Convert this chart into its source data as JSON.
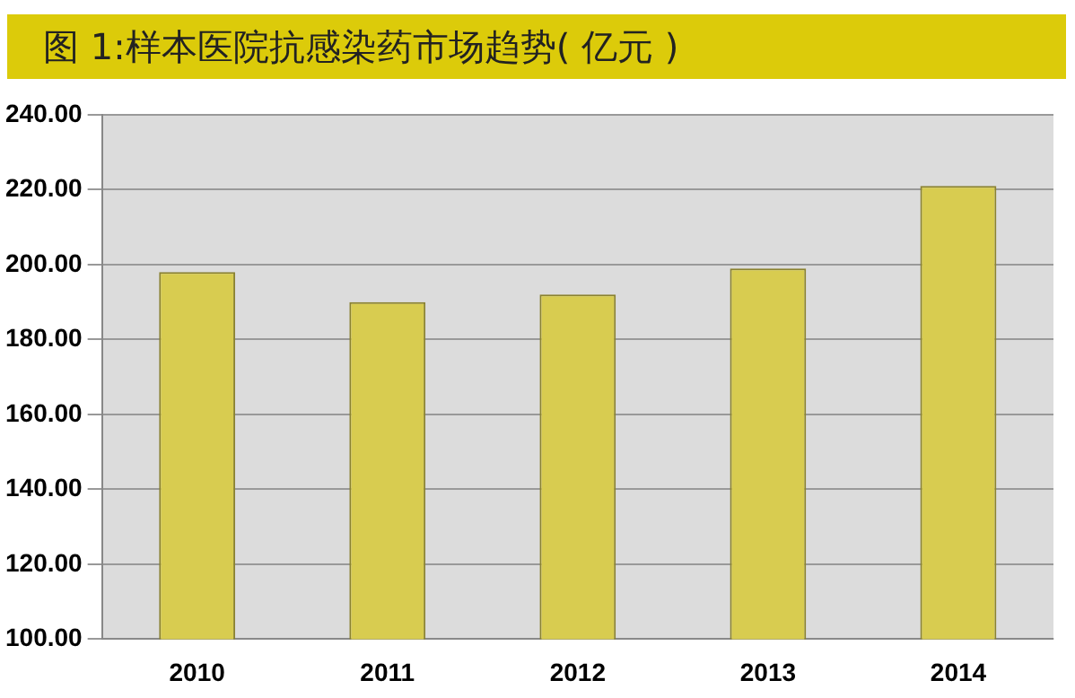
{
  "chart_data": {
    "type": "bar",
    "title": "图 1:样本医院抗感染药市场趋势( 亿元 )",
    "categories": [
      "2010",
      "2011",
      "2012",
      "2013",
      "2014"
    ],
    "values": [
      198,
      190,
      192,
      199,
      221
    ],
    "color": "#d8cc50",
    "ylim": [
      100,
      240
    ],
    "yticks": [
      {
        "value": 100,
        "label": "100.00"
      },
      {
        "value": 120,
        "label": "120.00"
      },
      {
        "value": 140,
        "label": "140.00"
      },
      {
        "value": 160,
        "label": "160.00"
      },
      {
        "value": 180,
        "label": "180.00"
      },
      {
        "value": 200,
        "label": "200.00"
      },
      {
        "value": 220,
        "label": "220.00"
      },
      {
        "value": 240,
        "label": "240.00"
      }
    ],
    "grid": "y",
    "legend": false
  }
}
